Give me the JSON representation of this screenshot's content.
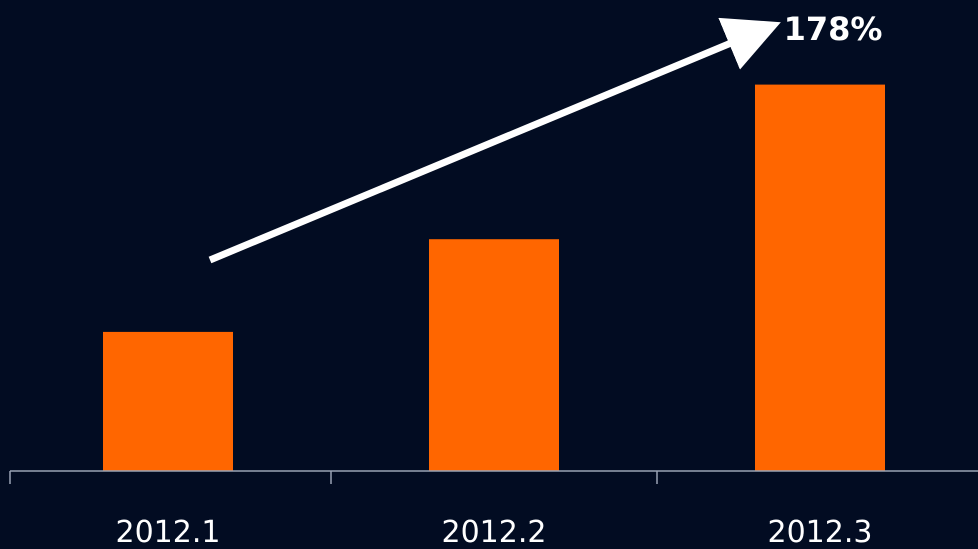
{
  "chart_data": {
    "type": "bar",
    "categories": [
      "2012.1",
      "2012.2",
      "2012.3"
    ],
    "values": [
      36,
      60,
      100
    ],
    "ylim": [
      0,
      110
    ],
    "grid": false,
    "legend": "none",
    "annotation": {
      "text": "178%",
      "arrow": "upward trend arrow from first bar to last bar"
    },
    "colors": {
      "background": "#020c22",
      "bar": "#ff6600",
      "axis": "#9aa3b5",
      "text": "#ffffff",
      "arrow": "#ffffff"
    }
  }
}
